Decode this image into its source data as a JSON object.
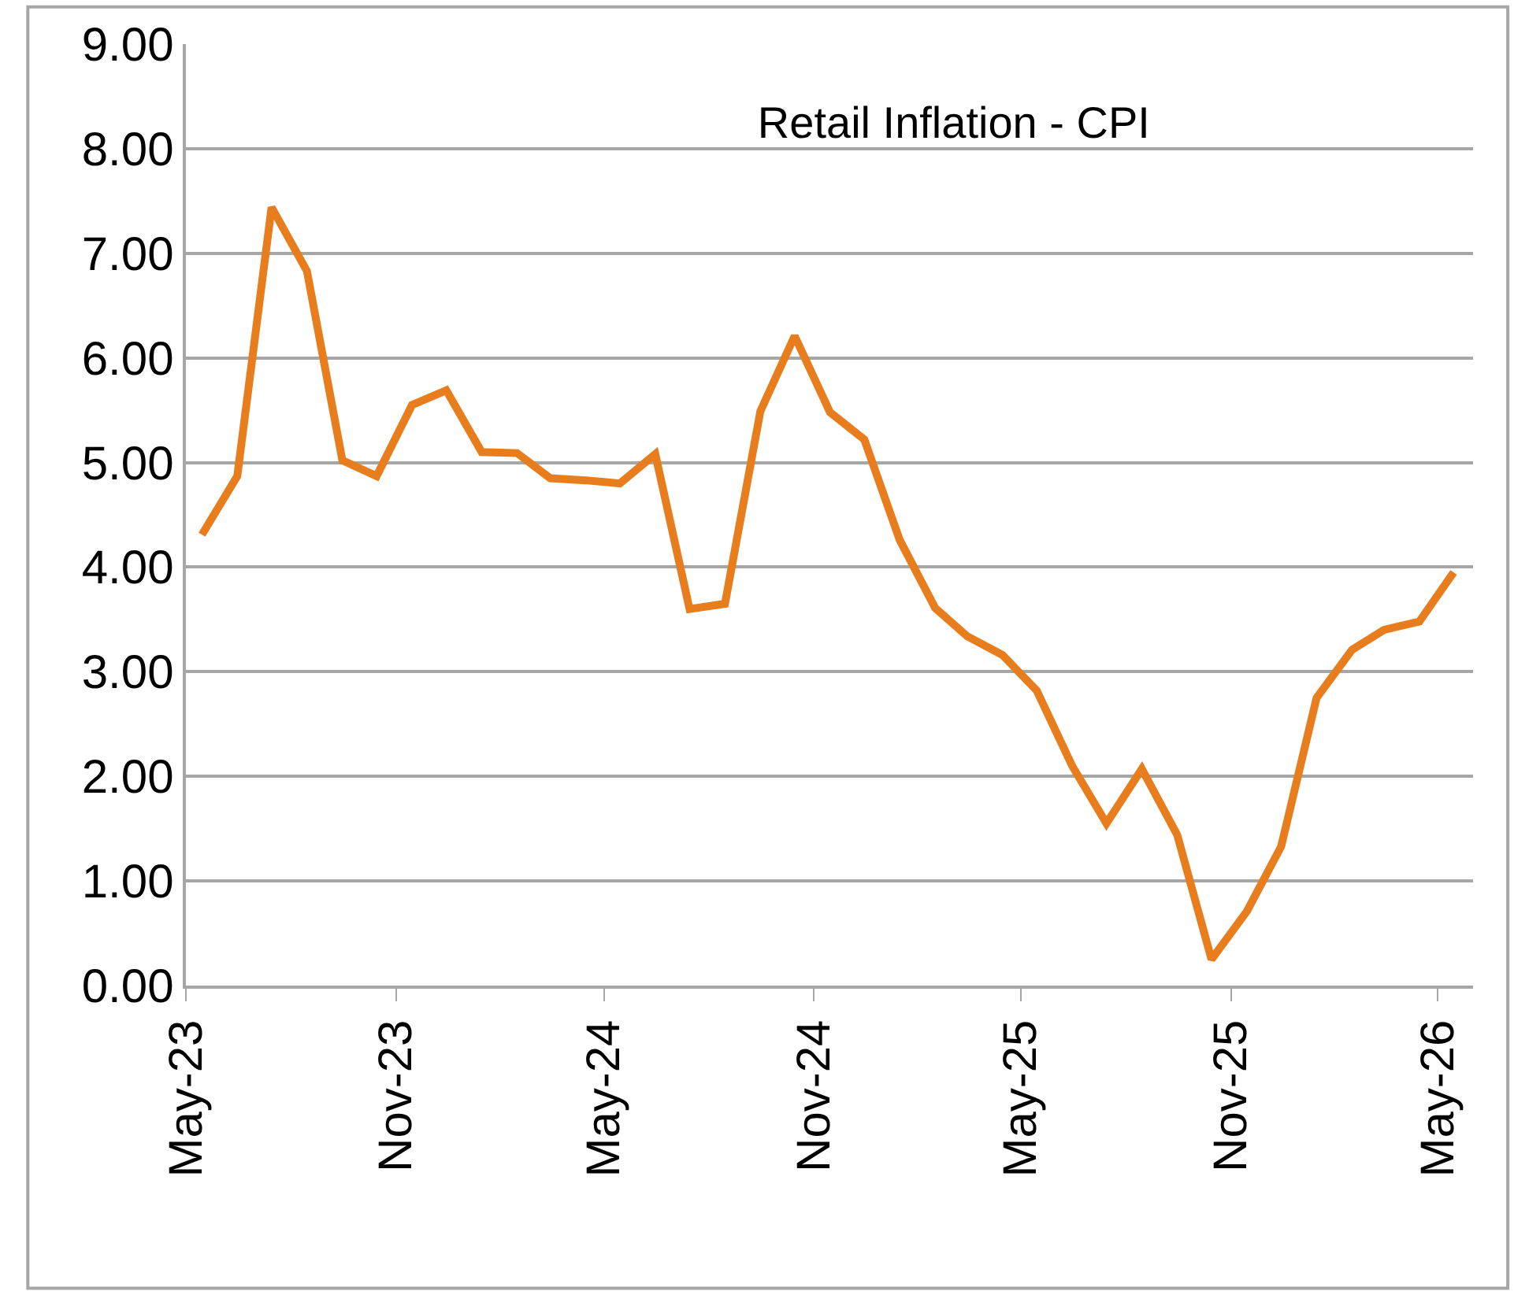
{
  "chart_data": {
    "type": "line",
    "title": "Retail Inflation - CPI",
    "x": [
      "2023-05-15",
      "2023-06-15",
      "2023-07-15",
      "2023-08-15",
      "2023-09-15",
      "2023-10-15",
      "2023-11-15",
      "2023-12-15",
      "2024-01-15",
      "2024-02-15",
      "2024-03-15",
      "2024-04-15",
      "2024-05-15",
      "2024-06-15",
      "2024-07-15",
      "2024-08-15",
      "2024-09-15",
      "2024-10-15",
      "2024-11-15",
      "2024-12-15",
      "2025-01-15",
      "2025-02-15",
      "2025-03-15",
      "2025-04-15",
      "2025-05-15",
      "2025-06-15",
      "2025-07-15",
      "2025-08-15",
      "2025-09-15",
      "2025-10-15",
      "2025-11-15",
      "2025-12-15",
      "2026-01-15",
      "2026-02-15",
      "2026-03-15",
      "2026-04-15",
      "2026-05-15"
    ],
    "series": [
      {
        "color": "#e87d1e",
        "values": [
          4.31,
          4.87,
          7.44,
          6.83,
          5.02,
          4.87,
          5.55,
          5.69,
          5.1,
          5.09,
          4.85,
          4.83,
          4.8,
          5.08,
          3.6,
          3.65,
          5.49,
          6.21,
          5.48,
          5.22,
          4.26,
          3.61,
          3.34,
          3.16,
          2.82,
          2.1,
          1.55,
          2.07,
          1.44,
          0.25,
          0.71,
          1.33,
          2.75,
          3.21,
          3.4,
          3.48,
          3.95
        ]
      }
    ],
    "xlim": [
      "2023-05-01",
      "2026-06-01"
    ],
    "xticks": [
      {
        "value": "2023-05-01",
        "label": "May-23"
      },
      {
        "value": "2023-11-01",
        "label": "Nov-23"
      },
      {
        "value": "2024-05-01",
        "label": "May-24"
      },
      {
        "value": "2024-11-01",
        "label": "Nov-24"
      },
      {
        "value": "2025-05-01",
        "label": "May-25"
      },
      {
        "value": "2025-11-01",
        "label": "Nov-25"
      },
      {
        "value": "2026-05-01",
        "label": "May-26"
      }
    ],
    "ylim": [
      0,
      9
    ],
    "yticks": [
      {
        "value": 0,
        "label": "0.00"
      },
      {
        "value": 1,
        "label": "1.00"
      },
      {
        "value": 2,
        "label": "2.00"
      },
      {
        "value": 3,
        "label": "3.00"
      },
      {
        "value": 4,
        "label": "4.00"
      },
      {
        "value": 5,
        "label": "5.00"
      },
      {
        "value": 6,
        "label": "6.00"
      },
      {
        "value": 7,
        "label": "7.00"
      },
      {
        "value": 8,
        "label": "8.00"
      },
      {
        "value": 9,
        "label": "9.00"
      }
    ],
    "grid": "y",
    "marker": "none",
    "line_style": "solid"
  }
}
